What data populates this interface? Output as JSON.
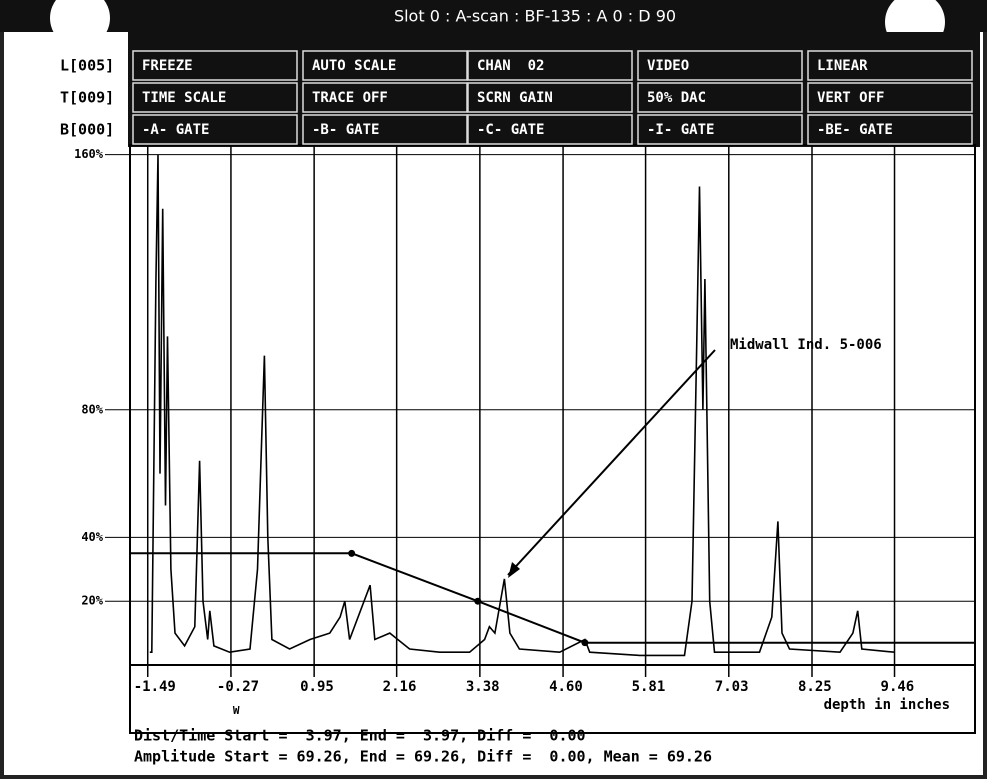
{
  "title": "Slot 0 : A-scan : BF-135 : A 0 : D 90",
  "side_labels": [
    "L[005]",
    "T[009]",
    "B[000]"
  ],
  "menu": [
    [
      "FREEZE",
      "AUTO SCALE",
      "CHAN  02",
      "VIDEO",
      "LINEAR"
    ],
    [
      "TIME SCALE",
      "TRACE OFF",
      "SCRN GAIN",
      "50% DAC",
      "VERT OFF"
    ],
    [
      "-A- GATE",
      "-B- GATE",
      "-C- GATE",
      "-I- GATE",
      "-BE- GATE"
    ]
  ],
  "chart_data": {
    "type": "line",
    "x_label": "depth in inches",
    "annotation": "Midwall Ind. 5-006",
    "marker_label": "W",
    "xlim": [
      -1.75,
      10.64
    ],
    "ylim": [
      0,
      163
    ],
    "xticks": [
      -1.49,
      -0.27,
      0.95,
      2.16,
      3.38,
      {
        "value": 4.6,
        "label": "4.60"
      },
      5.81,
      7.03,
      8.25,
      9.46
    ],
    "yticks": [
      {
        "value": 160,
        "label": "160%"
      },
      {
        "value": 80,
        "label": "80%"
      },
      {
        "value": 40,
        "label": "40%"
      },
      {
        "value": 20,
        "label": "20%"
      }
    ],
    "grid": true,
    "series": [
      {
        "name": "A-scan",
        "color": "#000000",
        "x": [
          -1.46,
          -1.43,
          -1.37,
          -1.34,
          -1.31,
          -1.27,
          -1.23,
          -1.2,
          -1.15,
          -1.09,
          -0.95,
          -0.8,
          -0.73,
          -0.68,
          -0.61,
          -0.58,
          -0.52,
          -0.29,
          0.01,
          0.12,
          0.18,
          0.22,
          0.27,
          0.33,
          0.59,
          0.89,
          1.18,
          1.33,
          1.4,
          1.47,
          1.77,
          1.84,
          2.06,
          2.35,
          2.79,
          3.23,
          3.45,
          3.52,
          3.6,
          3.74,
          3.82,
          3.96,
          4.55,
          4.92,
          4.99,
          5.72,
          6.38,
          6.49,
          6.56,
          6.6,
          6.65,
          6.68,
          6.75,
          6.82,
          7.48,
          7.66,
          7.75,
          7.81,
          7.92,
          8.66,
          8.85,
          8.92,
          8.98,
          9.46
        ],
        "values": [
          4,
          4,
          120,
          160,
          60,
          143,
          50,
          103,
          30,
          10,
          6,
          12,
          64,
          20,
          8,
          17,
          6,
          4,
          5,
          30,
          70,
          97,
          40,
          8,
          5,
          8,
          10,
          15,
          20,
          8,
          25,
          8,
          10,
          5,
          4,
          4,
          8,
          12,
          10,
          27,
          10,
          5,
          4,
          8,
          4,
          3,
          3,
          20,
          100,
          150,
          80,
          121,
          20,
          4,
          4,
          15,
          45,
          10,
          5,
          4,
          10,
          17,
          5,
          4
        ]
      },
      {
        "name": "DAC",
        "color": "#000000",
        "x": [
          -1.75,
          1.5,
          3.35,
          4.92,
          10.64
        ],
        "values": [
          35,
          35,
          20,
          7,
          7
        ]
      }
    ]
  },
  "readout": [
    "Dist/Time Start =  3.97, End =  3.97, Diff =  0.00",
    "Amplitude Start = 69.26, End = 69.26, Diff =  0.00, Mean = 69.26"
  ]
}
